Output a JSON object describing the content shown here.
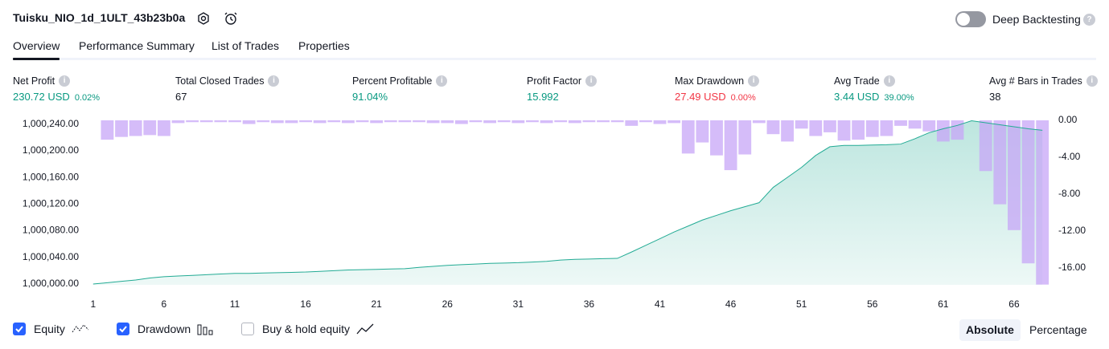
{
  "header": {
    "title": "Tuisku_NIO_1d_1ULT_43b23b0a",
    "toggle": {
      "label": "Deep Backtesting",
      "on": false
    }
  },
  "tabs": [
    {
      "label": "Overview",
      "active": true
    },
    {
      "label": "Performance Summary",
      "active": false
    },
    {
      "label": "List of Trades",
      "active": false
    },
    {
      "label": "Properties",
      "active": false
    }
  ],
  "metrics": [
    {
      "label": "Net Profit",
      "value": "230.72 USD",
      "sub": "0.02%",
      "tone": "up"
    },
    {
      "label": "Total Closed Trades",
      "value": "67",
      "tone": "neutral"
    },
    {
      "label": "Percent Profitable",
      "value": "91.04%",
      "tone": "up"
    },
    {
      "label": "Profit Factor",
      "value": "15.992",
      "tone": "up"
    },
    {
      "label": "Max Drawdown",
      "value": "27.49 USD",
      "sub": "0.00%",
      "tone": "down"
    },
    {
      "label": "Avg Trade",
      "value": "3.44 USD",
      "sub": "39.00%",
      "tone": "up"
    },
    {
      "label": "Avg # Bars in Trades",
      "value": "38",
      "tone": "neutral"
    }
  ],
  "chart_data": {
    "type": "line",
    "x": [
      1,
      2,
      3,
      4,
      5,
      6,
      7,
      8,
      9,
      10,
      11,
      12,
      13,
      14,
      15,
      16,
      17,
      18,
      19,
      20,
      21,
      22,
      23,
      24,
      25,
      26,
      27,
      28,
      29,
      30,
      31,
      32,
      33,
      34,
      35,
      36,
      37,
      38,
      39,
      40,
      41,
      42,
      43,
      44,
      45,
      46,
      47,
      48,
      49,
      50,
      51,
      52,
      53,
      54,
      55,
      56,
      57,
      58,
      59,
      60,
      61,
      62,
      63,
      64,
      65,
      66,
      67,
      68
    ],
    "xlim": [
      0.5,
      68.5
    ],
    "xticks": [
      1,
      6,
      11,
      16,
      21,
      26,
      31,
      36,
      41,
      46,
      51,
      56,
      61,
      66
    ],
    "ylim": [
      1000000,
      1000248
    ],
    "yticks": [
      {
        "value": 1000000,
        "label": "1,000,000.00"
      },
      {
        "value": 1000040,
        "label": "1,000,040.00"
      },
      {
        "value": 1000080,
        "label": "1,000,080.00"
      },
      {
        "value": 1000120,
        "label": "1,000,120.00"
      },
      {
        "value": 1000160,
        "label": "1,000,160.00"
      },
      {
        "value": 1000200,
        "label": "1,000,200.00"
      },
      {
        "value": 1000240,
        "label": "1,000,240.00"
      }
    ],
    "y2lim": [
      -17.74,
      0.17
    ],
    "y2ticks": [
      {
        "value": 0,
        "label": "0.00"
      },
      {
        "value": -4,
        "label": "-4.00"
      },
      {
        "value": -8,
        "label": "-8.00"
      },
      {
        "value": -12,
        "label": "-12.00"
      },
      {
        "value": -16,
        "label": "-16.00"
      }
    ],
    "series": [
      {
        "name": "Equity",
        "color": "#22ab94",
        "checked": true,
        "values": [
          1000000,
          1000002,
          1000004,
          1000006,
          1000009,
          1000011,
          1000012,
          1000013,
          1000014,
          1000015,
          1000016,
          1000016,
          1000016.5,
          1000017,
          1000017.5,
          1000018,
          1000019,
          1000020,
          1000021,
          1000021.5,
          1000022,
          1000022.5,
          1000023,
          1000025,
          1000026.5,
          1000028,
          1000029,
          1000030,
          1000031,
          1000031.5,
          1000032,
          1000033,
          1000034,
          1000036,
          1000037,
          1000037.5,
          1000038,
          1000038.5,
          1000048,
          1000058,
          1000068,
          1000078,
          1000087,
          1000096,
          1000103,
          1000110,
          1000116,
          1000122,
          1000145,
          1000160,
          1000175,
          1000193,
          1000206,
          1000208,
          1000208,
          1000208.5,
          1000209,
          1000210,
          1000218,
          1000227,
          1000233,
          1000238,
          1000245,
          1000242,
          1000239,
          1000236,
          1000233,
          1000230.72
        ]
      },
      {
        "name": "Drawdown",
        "color": "#c7a6f7",
        "axis": "y2",
        "checked": true,
        "values": [
          0,
          -2.1,
          -1.8,
          -1.7,
          -1.6,
          -1.7,
          -0.3,
          -0.2,
          -0.2,
          -0.2,
          -0.2,
          -0.4,
          -0.2,
          -0.3,
          -0.3,
          -0.2,
          -0.3,
          -0.2,
          -0.3,
          -0.2,
          -0.3,
          -0.2,
          -0.2,
          -0.2,
          -0.3,
          -0.3,
          -0.4,
          -0.2,
          -0.3,
          -0.2,
          -0.3,
          -0.2,
          -0.3,
          -0.2,
          -0.3,
          -0.2,
          -0.2,
          -0.2,
          -0.6,
          -0.2,
          -0.4,
          -0.3,
          -3.6,
          -2.4,
          -3.8,
          -5.4,
          -3.7,
          -0.3,
          -1.5,
          -2.3,
          -0.9,
          -1.7,
          -1.3,
          -2.2,
          -2.1,
          -1.8,
          -1.7,
          -0.6,
          -0.9,
          -1.2,
          -2.3,
          -2.1,
          0,
          -5.5,
          -9.1,
          -11.9,
          -15.5,
          -17.8
        ]
      }
    ],
    "buy_hold": {
      "name": "Buy & hold equity",
      "checked": false
    }
  },
  "scale_buttons": [
    {
      "label": "Absolute",
      "active": true
    },
    {
      "label": "Percentage",
      "active": false
    }
  ]
}
